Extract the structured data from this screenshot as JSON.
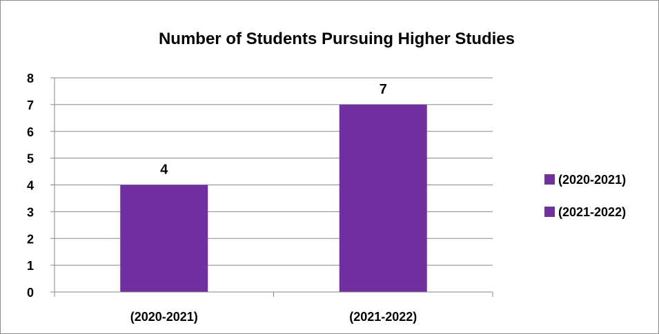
{
  "chart_data": {
    "type": "bar",
    "title": "Number of Students Pursuing Higher Studies",
    "categories": [
      "(2020-2021)",
      "(2021-2022)"
    ],
    "values": [
      4,
      7
    ],
    "data_labels": [
      "4",
      "7"
    ],
    "yticks": [
      "0",
      "1",
      "2",
      "3",
      "4",
      "5",
      "6",
      "7",
      "8"
    ],
    "ylim": [
      0,
      8
    ],
    "xlabel": "",
    "ylabel": "",
    "grid": true,
    "legend": {
      "placement": "right",
      "entries": [
        "(2020-2021)",
        "(2021-2022)"
      ]
    },
    "colors": {
      "bar": "#7030a0",
      "grid": "#868686",
      "axis": "#868686"
    }
  }
}
